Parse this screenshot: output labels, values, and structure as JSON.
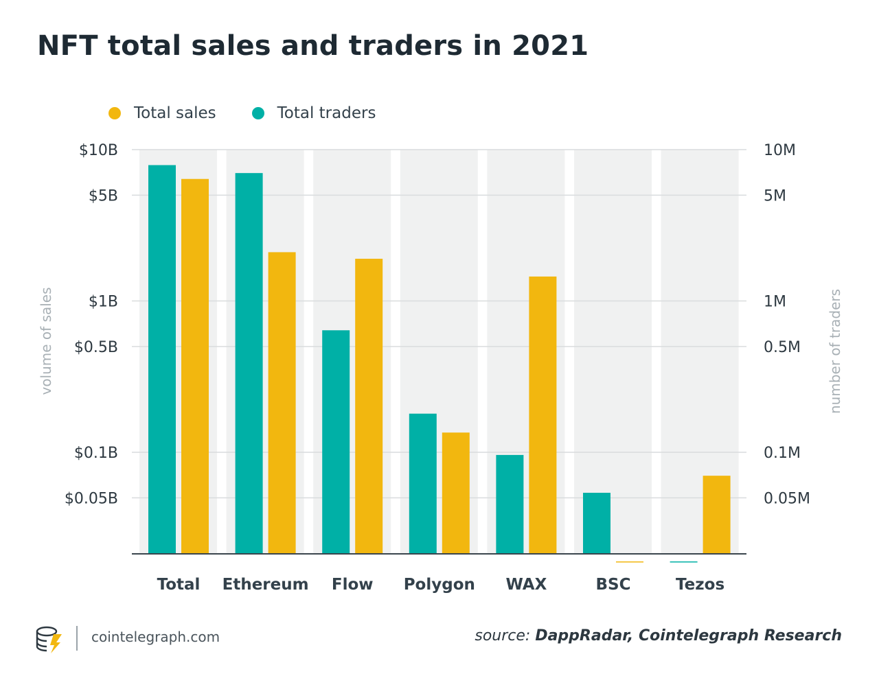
{
  "chart_data": {
    "type": "bar",
    "title": "NFT total sales and traders in 2021",
    "categories": [
      "Total",
      "Ethereum",
      "Flow",
      "Polygon",
      "WAX",
      "BSC",
      "Tezos"
    ],
    "series": [
      {
        "name": "Total traders",
        "axis": "right",
        "unit": "traders",
        "values": [
          7900000,
          7000000,
          640000,
          180000,
          96000,
          54000,
          19000
        ]
      },
      {
        "name": "Total sales",
        "axis": "left",
        "unit": "USD",
        "values": [
          6400000000,
          2100000000,
          1900000000,
          135000000,
          1450000000,
          19000000,
          70000000
        ]
      }
    ],
    "ylabel_left": "volume of sales",
    "ylabel_right": "number of traders",
    "yscale": "log",
    "ylim_left": [
      20000000,
      10000000000
    ],
    "ylim_right": [
      20000,
      10000000
    ],
    "yticks_left": [
      {
        "value": 10000000000,
        "label": "$10B"
      },
      {
        "value": 5000000000,
        "label": "$5B"
      },
      {
        "value": 1000000000,
        "label": "$1B"
      },
      {
        "value": 500000000,
        "label": "$0.5B"
      },
      {
        "value": 100000000,
        "label": "$0.1B"
      },
      {
        "value": 50000000,
        "label": "$0.05B"
      }
    ],
    "yticks_right": [
      {
        "value": 10000000,
        "label": "10M"
      },
      {
        "value": 5000000,
        "label": "5M"
      },
      {
        "value": 1000000,
        "label": "1M"
      },
      {
        "value": 500000,
        "label": "0.5M"
      },
      {
        "value": 100000,
        "label": "0.1M"
      },
      {
        "value": 50000,
        "label": "0.05M"
      }
    ],
    "grid": true,
    "legend_position": "top-left"
  },
  "colors": {
    "traders": "#00b0a6",
    "sales": "#f2b70f",
    "band": "#f0f1f1",
    "grid": "#d9dcde",
    "axis_text": "#2d3840",
    "axis_label": "#a8b0b5"
  },
  "legend": {
    "sales_label": "Total sales",
    "traders_label": "Total traders"
  },
  "footer": {
    "site": "cointelegraph.com",
    "source_prefix": "source: ",
    "source_text": "DappRadar, Cointelegraph Research",
    "logo_icon": "cointelegraph-logo-icon"
  }
}
